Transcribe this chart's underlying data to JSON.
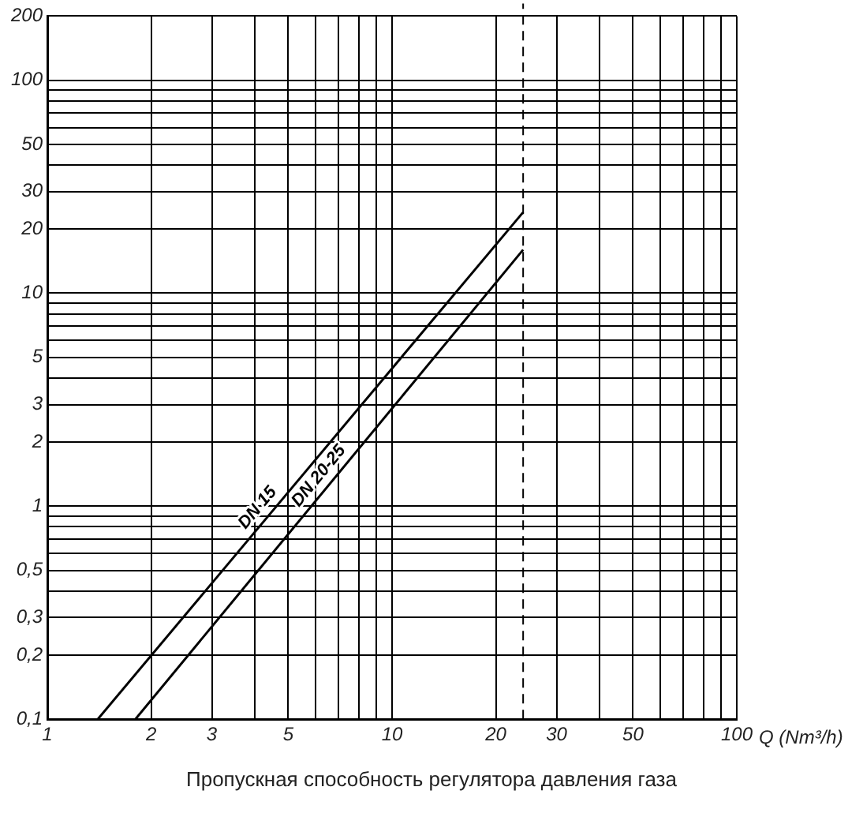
{
  "chart_data": {
    "type": "line",
    "xlabel": "Q (Nm³/h)",
    "log": "xy",
    "grid": true,
    "legend": false,
    "marker": "none",
    "line_style": "solid",
    "xlim": [
      1,
      100
    ],
    "ylim": [
      0.1,
      200
    ],
    "xticks": [
      1,
      2,
      3,
      {
        "value": 4,
        "label": null
      },
      5,
      {
        "value": 6,
        "label": null
      },
      {
        "value": 7,
        "label": null
      },
      {
        "value": 8,
        "label": null
      },
      {
        "value": 9,
        "label": null
      },
      10,
      20,
      30,
      {
        "value": 40,
        "label": null
      },
      50,
      {
        "value": 60,
        "label": null
      },
      {
        "value": 70,
        "label": null
      },
      {
        "value": 80,
        "label": null
      },
      {
        "value": 90,
        "label": null
      },
      100
    ],
    "yticks": [
      {
        "value": 0.1,
        "label": "0,1"
      },
      {
        "value": 0.2,
        "label": "0,2"
      },
      {
        "value": 0.3,
        "label": "0,3"
      },
      {
        "value": 0.4,
        "label": null
      },
      {
        "value": 0.5,
        "label": "0,5"
      },
      {
        "value": 0.6,
        "label": null
      },
      {
        "value": 0.7,
        "label": null
      },
      {
        "value": 0.8,
        "label": null
      },
      {
        "value": 0.9,
        "label": null
      },
      1,
      2,
      3,
      {
        "value": 4,
        "label": null
      },
      5,
      {
        "value": 6,
        "label": null
      },
      {
        "value": 7,
        "label": null
      },
      {
        "value": 8,
        "label": null
      },
      {
        "value": 9,
        "label": null
      },
      10,
      20,
      30,
      {
        "value": 40,
        "label": null
      },
      50,
      {
        "value": 60,
        "label": null
      },
      {
        "value": 70,
        "label": null
      },
      {
        "value": 80,
        "label": null
      },
      {
        "value": 90,
        "label": null
      },
      100,
      200
    ],
    "series": [
      {
        "name": "DN 15",
        "color": "#000000",
        "x": [
          1.4,
          24
        ],
        "values": [
          0.1,
          24
        ]
      },
      {
        "name": "DN 20-25",
        "color": "#000000",
        "x": [
          1.8,
          24
        ],
        "values": [
          0.1,
          16
        ]
      }
    ],
    "ref_lines": [
      {
        "axis": "x",
        "value": 24,
        "line_style": "dashed",
        "color": "#000000"
      }
    ],
    "annotations": [
      "Пропускная способность регулятора давления газа"
    ]
  }
}
